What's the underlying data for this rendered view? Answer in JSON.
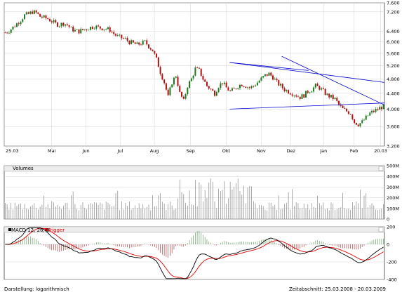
{
  "chart_data": [
    {
      "type": "candlestick",
      "name_hint": "price",
      "y_scale": "log",
      "ylim": [
        3200,
        7600
      ],
      "y_ticks": [
        "3.200",
        "3.600",
        "4.000",
        "4.400",
        "4.800",
        "5.200",
        "5.600",
        "6.000",
        "6.400",
        "7.200",
        "7.600"
      ],
      "y_tick_values": [
        3200,
        3600,
        4000,
        4400,
        4800,
        5200,
        5600,
        6000,
        6400,
        7200,
        7600
      ],
      "x_labels": [
        "25.03",
        "Mai",
        "Jun",
        "Jul",
        "Aug",
        "Sep",
        "Okt",
        "Nov",
        "Dez",
        "Jan",
        "Feb",
        "20.03"
      ],
      "x_label_pos": [
        0,
        0.125,
        0.215,
        0.305,
        0.395,
        0.49,
        0.584,
        0.676,
        0.754,
        0.84,
        0.92,
        0.99
      ],
      "close_series": [
        6350,
        6420,
        6550,
        6700,
        6850,
        7050,
        7100,
        7200,
        7150,
        7000,
        6950,
        6900,
        6800,
        6700,
        6650,
        6720,
        6650,
        6500,
        6420,
        6400,
        6450,
        6500,
        6550,
        6600,
        6550,
        6520,
        6500,
        6450,
        6300,
        6200,
        6150,
        6100,
        6000,
        5950,
        5900,
        5950,
        6000,
        5850,
        5700,
        5400,
        5000,
        4700,
        4300,
        4700,
        4900,
        4400,
        4200,
        4600,
        4800,
        5100,
        5050,
        4800,
        4600,
        4500,
        4400,
        4600,
        4700,
        4550,
        4450,
        4500,
        4600,
        4650,
        4600,
        4550,
        4600,
        4700,
        4800,
        4900,
        4950,
        4850,
        4700,
        4600,
        4500,
        4450,
        4400,
        4350,
        4300,
        4350,
        4450,
        4500,
        4600,
        4550,
        4450,
        4350,
        4300,
        4250,
        4100,
        4000,
        3950,
        3900,
        3700,
        3650,
        3700,
        3800,
        3900,
        3950,
        4000,
        4050
      ],
      "trendlines": [
        {
          "x": [
            0.593,
            0.8
          ],
          "y": [
            5300,
            5050
          ]
        },
        {
          "x": [
            0.593,
            1.0
          ],
          "y": [
            5300,
            4700
          ]
        },
        {
          "x": [
            0.73,
            1.0
          ],
          "y": [
            5500,
            4100
          ]
        },
        {
          "x": [
            0.593,
            1.0
          ],
          "y": [
            4000,
            4150
          ]
        }
      ],
      "hline": 4000,
      "colors": {
        "up": "#1a7a1a",
        "down": "#b01010",
        "line": "#0000cc",
        "axis": "#000000",
        "grid": "#cfcfcf",
        "bg": "#ffffff"
      }
    },
    {
      "type": "bar",
      "title": "Volumes",
      "ylim": [
        0,
        500
      ],
      "y_ticks": [
        "500M",
        "400M",
        "300M",
        "200M",
        "100M",
        "0"
      ],
      "y_tick_values": [
        500,
        400,
        300,
        200,
        100,
        0
      ],
      "colors": {
        "bar": "#888888"
      }
    },
    {
      "type": "line",
      "title": "MACD 12, 26, 9",
      "legend": [
        "MACD 12, 26, 9",
        "Trigger"
      ],
      "ylim": [
        -400,
        200
      ],
      "y_ticks": [
        "200",
        "0",
        "-200",
        "-400"
      ],
      "y_tick_values": [
        200,
        0,
        -200,
        -400
      ],
      "colors": {
        "macd": "#000000",
        "trigger": "#e00000",
        "hist_up": "#6aa06a",
        "hist_down": "#b04040"
      }
    }
  ],
  "footer": {
    "left": "Darstellung: logarithmisch",
    "right": "Zeitabschnitt: 25.03.2008 - 20.03.2009"
  }
}
